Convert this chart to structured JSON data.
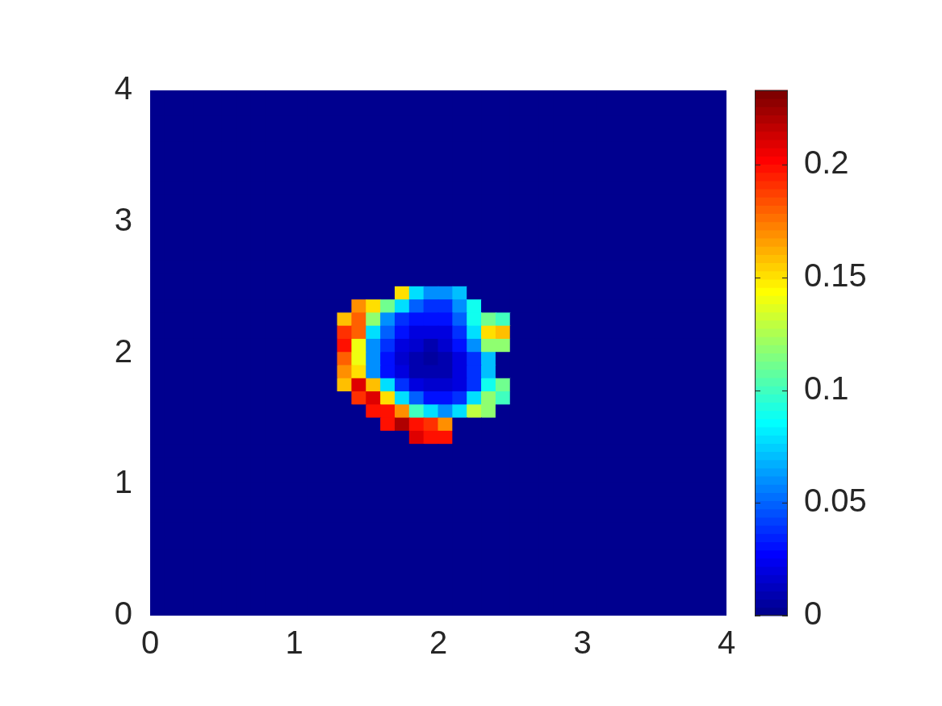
{
  "chart_data": {
    "type": "heatmap",
    "cells": [
      [
        0,
        0,
        0,
        0,
        0,
        0,
        0,
        0,
        0,
        0,
        0,
        0,
        0,
        0,
        0,
        0,
        0,
        0,
        0,
        0,
        0,
        0,
        0,
        0,
        0,
        0,
        0,
        0,
        0,
        0,
        0,
        0,
        0,
        0,
        0,
        0,
        0,
        0,
        0,
        0
      ],
      [
        0,
        0,
        0,
        0,
        0,
        0,
        0,
        0,
        0,
        0,
        0,
        0,
        0,
        0,
        0,
        0,
        0,
        0,
        0,
        0,
        0,
        0,
        0,
        0,
        0,
        0,
        0,
        0,
        0,
        0,
        0,
        0,
        0,
        0,
        0,
        0,
        0,
        0,
        0,
        0
      ],
      [
        0,
        0,
        0,
        0,
        0,
        0,
        0,
        0,
        0,
        0,
        0,
        0,
        0,
        0,
        0,
        0,
        0,
        0,
        0,
        0,
        0,
        0,
        0,
        0,
        0,
        0,
        0,
        0,
        0,
        0,
        0,
        0,
        0,
        0,
        0,
        0,
        0,
        0,
        0,
        0
      ],
      [
        0,
        0,
        0,
        0,
        0,
        0,
        0,
        0,
        0,
        0,
        0,
        0,
        0,
        0,
        0,
        0,
        0,
        0,
        0,
        0,
        0,
        0,
        0,
        0,
        0,
        0,
        0,
        0,
        0,
        0,
        0,
        0,
        0,
        0,
        0,
        0,
        0,
        0,
        0,
        0
      ],
      [
        0,
        0,
        0,
        0,
        0,
        0,
        0,
        0,
        0,
        0,
        0,
        0,
        0,
        0,
        0,
        0,
        0,
        0,
        0,
        0,
        0,
        0,
        0,
        0,
        0,
        0,
        0,
        0,
        0,
        0,
        0,
        0,
        0,
        0,
        0,
        0,
        0,
        0,
        0,
        0
      ],
      [
        0,
        0,
        0,
        0,
        0,
        0,
        0,
        0,
        0,
        0,
        0,
        0,
        0,
        0,
        0,
        0,
        0,
        0,
        0,
        0,
        0,
        0,
        0,
        0,
        0,
        0,
        0,
        0,
        0,
        0,
        0,
        0,
        0,
        0,
        0,
        0,
        0,
        0,
        0,
        0
      ],
      [
        0,
        0,
        0,
        0,
        0,
        0,
        0,
        0,
        0,
        0,
        0,
        0,
        0,
        0,
        0,
        0,
        0,
        0,
        0,
        0,
        0,
        0,
        0,
        0,
        0,
        0,
        0,
        0,
        0,
        0,
        0,
        0,
        0,
        0,
        0,
        0,
        0,
        0,
        0,
        0
      ],
      [
        0,
        0,
        0,
        0,
        0,
        0,
        0,
        0,
        0,
        0,
        0,
        0,
        0,
        0,
        0,
        0,
        0,
        0,
        0,
        0,
        0,
        0,
        0,
        0,
        0,
        0,
        0,
        0,
        0,
        0,
        0,
        0,
        0,
        0,
        0,
        0,
        0,
        0,
        0,
        0
      ],
      [
        0,
        0,
        0,
        0,
        0,
        0,
        0,
        0,
        0,
        0,
        0,
        0,
        0,
        0,
        0,
        0,
        0,
        0,
        0,
        0,
        0,
        0,
        0,
        0,
        0,
        0,
        0,
        0,
        0,
        0,
        0,
        0,
        0,
        0,
        0,
        0,
        0,
        0,
        0,
        0
      ],
      [
        0,
        0,
        0,
        0,
        0,
        0,
        0,
        0,
        0,
        0,
        0,
        0,
        0,
        0,
        0,
        0,
        0,
        0,
        0,
        0,
        0,
        0,
        0,
        0,
        0,
        0,
        0,
        0,
        0,
        0,
        0,
        0,
        0,
        0,
        0,
        0,
        0,
        0,
        0,
        0
      ],
      [
        0,
        0,
        0,
        0,
        0,
        0,
        0,
        0,
        0,
        0,
        0,
        0,
        0,
        0,
        0,
        0,
        0,
        0,
        0,
        0,
        0,
        0,
        0,
        0,
        0,
        0,
        0,
        0,
        0,
        0,
        0,
        0,
        0,
        0,
        0,
        0,
        0,
        0,
        0,
        0
      ],
      [
        0,
        0,
        0,
        0,
        0,
        0,
        0,
        0,
        0,
        0,
        0,
        0,
        0,
        0,
        0,
        0,
        0,
        0,
        0,
        0,
        0,
        0,
        0,
        0,
        0,
        0,
        0,
        0,
        0,
        0,
        0,
        0,
        0,
        0,
        0,
        0,
        0,
        0,
        0,
        0
      ],
      [
        0,
        0,
        0,
        0,
        0,
        0,
        0,
        0,
        0,
        0,
        0,
        0,
        0,
        0,
        0,
        0,
        0,
        0,
        0,
        0,
        0,
        0,
        0,
        0,
        0,
        0,
        0,
        0,
        0,
        0,
        0,
        0,
        0,
        0,
        0,
        0,
        0,
        0,
        0,
        0
      ],
      [
        0,
        0,
        0,
        0,
        0,
        0,
        0,
        0,
        0,
        0,
        0,
        0,
        0,
        0,
        0,
        0,
        0,
        0,
        0,
        0,
        0,
        0,
        0,
        0,
        0,
        0,
        0,
        0,
        0,
        0,
        0,
        0,
        0,
        0,
        0,
        0,
        0,
        0,
        0,
        0
      ],
      [
        0,
        0,
        0,
        0,
        0,
        0,
        0,
        0,
        0,
        0,
        0,
        0,
        0,
        0,
        0,
        0,
        0,
        0,
        0,
        0,
        0,
        0,
        0,
        0,
        0,
        0,
        0,
        0,
        0,
        0,
        0,
        0,
        0,
        0,
        0,
        0,
        0,
        0,
        0,
        0
      ],
      [
        0,
        0,
        0,
        0,
        0,
        0,
        0,
        0,
        0,
        0,
        0,
        0,
        0,
        0,
        0,
        0,
        0,
        0.15,
        0.08,
        0.06,
        0.06,
        0.07,
        0,
        0,
        0,
        0,
        0,
        0,
        0,
        0,
        0,
        0,
        0,
        0,
        0,
        0,
        0,
        0,
        0,
        0
      ],
      [
        0,
        0,
        0,
        0,
        0,
        0,
        0,
        0,
        0,
        0,
        0,
        0,
        0,
        0,
        0.17,
        0.15,
        0.11,
        0.08,
        0.05,
        0.04,
        0.04,
        0.06,
        0.09,
        0,
        0,
        0,
        0,
        0,
        0,
        0,
        0,
        0,
        0,
        0,
        0,
        0,
        0,
        0,
        0,
        0
      ],
      [
        0,
        0,
        0,
        0,
        0,
        0,
        0,
        0,
        0,
        0,
        0,
        0,
        0,
        0.16,
        0.18,
        0.12,
        0.06,
        0.04,
        0.03,
        0.03,
        0.03,
        0.05,
        0.09,
        0.11,
        0.1,
        0,
        0,
        0,
        0,
        0,
        0,
        0,
        0,
        0,
        0,
        0,
        0,
        0,
        0,
        0
      ],
      [
        0,
        0,
        0,
        0,
        0,
        0,
        0,
        0,
        0,
        0,
        0,
        0,
        0,
        0.19,
        0.18,
        0.08,
        0.05,
        0.03,
        0.02,
        0.02,
        0.02,
        0.04,
        0.08,
        0.15,
        0.16,
        0,
        0,
        0,
        0,
        0,
        0,
        0,
        0,
        0,
        0,
        0,
        0,
        0,
        0,
        0
      ],
      [
        0,
        0,
        0,
        0,
        0,
        0,
        0,
        0,
        0,
        0,
        0,
        0,
        0,
        0.2,
        0.14,
        0.06,
        0.04,
        0.02,
        0.015,
        0.01,
        0.015,
        0.03,
        0.06,
        0.12,
        0.12,
        0,
        0,
        0,
        0,
        0,
        0,
        0,
        0,
        0,
        0,
        0,
        0,
        0,
        0,
        0
      ],
      [
        0,
        0,
        0,
        0,
        0,
        0,
        0,
        0,
        0,
        0,
        0,
        0,
        0,
        0.18,
        0.14,
        0.06,
        0.03,
        0.015,
        0.01,
        0.005,
        0.01,
        0.02,
        0.04,
        0.07,
        0,
        0,
        0,
        0,
        0,
        0,
        0,
        0,
        0,
        0,
        0,
        0,
        0,
        0,
        0,
        0
      ],
      [
        0,
        0,
        0,
        0,
        0,
        0,
        0,
        0,
        0,
        0,
        0,
        0,
        0,
        0.17,
        0.15,
        0.06,
        0.03,
        0.02,
        0.01,
        0.01,
        0.01,
        0.02,
        0.04,
        0.07,
        0,
        0,
        0,
        0,
        0,
        0,
        0,
        0,
        0,
        0,
        0,
        0,
        0,
        0,
        0,
        0
      ],
      [
        0,
        0,
        0,
        0,
        0,
        0,
        0,
        0,
        0,
        0,
        0,
        0,
        0,
        0.16,
        0.21,
        0.16,
        0.08,
        0.04,
        0.02,
        0.015,
        0.015,
        0.02,
        0.04,
        0.09,
        0.11,
        0,
        0,
        0,
        0,
        0,
        0,
        0,
        0,
        0,
        0,
        0,
        0,
        0,
        0,
        0
      ],
      [
        0,
        0,
        0,
        0,
        0,
        0,
        0,
        0,
        0,
        0,
        0,
        0,
        0,
        0,
        0.19,
        0.21,
        0.15,
        0.08,
        0.05,
        0.03,
        0.03,
        0.04,
        0.08,
        0.12,
        0.1,
        0,
        0,
        0,
        0,
        0,
        0,
        0,
        0,
        0,
        0,
        0,
        0,
        0,
        0,
        0
      ],
      [
        0,
        0,
        0,
        0,
        0,
        0,
        0,
        0,
        0,
        0,
        0,
        0,
        0,
        0,
        0,
        0.2,
        0.2,
        0.17,
        0.1,
        0.08,
        0.06,
        0.08,
        0.13,
        0.12,
        0,
        0,
        0,
        0,
        0,
        0,
        0,
        0,
        0,
        0,
        0,
        0,
        0,
        0,
        0,
        0
      ],
      [
        0,
        0,
        0,
        0,
        0,
        0,
        0,
        0,
        0,
        0,
        0,
        0,
        0,
        0,
        0,
        0,
        0.2,
        0.22,
        0.2,
        0.19,
        0.17,
        0,
        0,
        0,
        0,
        0,
        0,
        0,
        0,
        0,
        0,
        0,
        0,
        0,
        0,
        0,
        0,
        0,
        0,
        0
      ],
      [
        0,
        0,
        0,
        0,
        0,
        0,
        0,
        0,
        0,
        0,
        0,
        0,
        0,
        0,
        0,
        0,
        0,
        0,
        0.21,
        0.2,
        0.2,
        0,
        0,
        0,
        0,
        0,
        0,
        0,
        0,
        0,
        0,
        0,
        0,
        0,
        0,
        0,
        0,
        0,
        0,
        0
      ],
      [
        0,
        0,
        0,
        0,
        0,
        0,
        0,
        0,
        0,
        0,
        0,
        0,
        0,
        0,
        0,
        0,
        0,
        0,
        0,
        0,
        0,
        0,
        0,
        0,
        0,
        0,
        0,
        0,
        0,
        0,
        0,
        0,
        0,
        0,
        0,
        0,
        0,
        0,
        0,
        0
      ],
      [
        0,
        0,
        0,
        0,
        0,
        0,
        0,
        0,
        0,
        0,
        0,
        0,
        0,
        0,
        0,
        0,
        0,
        0,
        0,
        0,
        0,
        0,
        0,
        0,
        0,
        0,
        0,
        0,
        0,
        0,
        0,
        0,
        0,
        0,
        0,
        0,
        0,
        0,
        0,
        0
      ],
      [
        0,
        0,
        0,
        0,
        0,
        0,
        0,
        0,
        0,
        0,
        0,
        0,
        0,
        0,
        0,
        0,
        0,
        0,
        0,
        0,
        0,
        0,
        0,
        0,
        0,
        0,
        0,
        0,
        0,
        0,
        0,
        0,
        0,
        0,
        0,
        0,
        0,
        0,
        0,
        0
      ],
      [
        0,
        0,
        0,
        0,
        0,
        0,
        0,
        0,
        0,
        0,
        0,
        0,
        0,
        0,
        0,
        0,
        0,
        0,
        0,
        0,
        0,
        0,
        0,
        0,
        0,
        0,
        0,
        0,
        0,
        0,
        0,
        0,
        0,
        0,
        0,
        0,
        0,
        0,
        0,
        0
      ],
      [
        0,
        0,
        0,
        0,
        0,
        0,
        0,
        0,
        0,
        0,
        0,
        0,
        0,
        0,
        0,
        0,
        0,
        0,
        0,
        0,
        0,
        0,
        0,
        0,
        0,
        0,
        0,
        0,
        0,
        0,
        0,
        0,
        0,
        0,
        0,
        0,
        0,
        0,
        0,
        0
      ],
      [
        0,
        0,
        0,
        0,
        0,
        0,
        0,
        0,
        0,
        0,
        0,
        0,
        0,
        0,
        0,
        0,
        0,
        0,
        0,
        0,
        0,
        0,
        0,
        0,
        0,
        0,
        0,
        0,
        0,
        0,
        0,
        0,
        0,
        0,
        0,
        0,
        0,
        0,
        0,
        0
      ],
      [
        0,
        0,
        0,
        0,
        0,
        0,
        0,
        0,
        0,
        0,
        0,
        0,
        0,
        0,
        0,
        0,
        0,
        0,
        0,
        0,
        0,
        0,
        0,
        0,
        0,
        0,
        0,
        0,
        0,
        0,
        0,
        0,
        0,
        0,
        0,
        0,
        0,
        0,
        0,
        0
      ],
      [
        0,
        0,
        0,
        0,
        0,
        0,
        0,
        0,
        0,
        0,
        0,
        0,
        0,
        0,
        0,
        0,
        0,
        0,
        0,
        0,
        0,
        0,
        0,
        0,
        0,
        0,
        0,
        0,
        0,
        0,
        0,
        0,
        0,
        0,
        0,
        0,
        0,
        0,
        0,
        0
      ],
      [
        0,
        0,
        0,
        0,
        0,
        0,
        0,
        0,
        0,
        0,
        0,
        0,
        0,
        0,
        0,
        0,
        0,
        0,
        0,
        0,
        0,
        0,
        0,
        0,
        0,
        0,
        0,
        0,
        0,
        0,
        0,
        0,
        0,
        0,
        0,
        0,
        0,
        0,
        0,
        0
      ],
      [
        0,
        0,
        0,
        0,
        0,
        0,
        0,
        0,
        0,
        0,
        0,
        0,
        0,
        0,
        0,
        0,
        0,
        0,
        0,
        0,
        0,
        0,
        0,
        0,
        0,
        0,
        0,
        0,
        0,
        0,
        0,
        0,
        0,
        0,
        0,
        0,
        0,
        0,
        0,
        0
      ],
      [
        0,
        0,
        0,
        0,
        0,
        0,
        0,
        0,
        0,
        0,
        0,
        0,
        0,
        0,
        0,
        0,
        0,
        0,
        0,
        0,
        0,
        0,
        0,
        0,
        0,
        0,
        0,
        0,
        0,
        0,
        0,
        0,
        0,
        0,
        0,
        0,
        0,
        0,
        0,
        0
      ],
      [
        0,
        0,
        0,
        0,
        0,
        0,
        0,
        0,
        0,
        0,
        0,
        0,
        0,
        0,
        0,
        0,
        0,
        0,
        0,
        0,
        0,
        0,
        0,
        0,
        0,
        0,
        0,
        0,
        0,
        0,
        0,
        0,
        0,
        0,
        0,
        0,
        0,
        0,
        0,
        0
      ],
      [
        0,
        0,
        0,
        0,
        0,
        0,
        0,
        0,
        0,
        0,
        0,
        0,
        0,
        0,
        0,
        0,
        0,
        0,
        0,
        0,
        0,
        0,
        0,
        0,
        0,
        0,
        0,
        0,
        0,
        0,
        0,
        0,
        0,
        0,
        0,
        0,
        0,
        0,
        0,
        0
      ]
    ],
    "xlim": [
      0,
      4
    ],
    "xticks": [
      0,
      1,
      2,
      3,
      4
    ],
    "ylim": [
      0,
      4
    ],
    "yticks": [
      0,
      1,
      2,
      3,
      4
    ],
    "clim": [
      0,
      0.233
    ],
    "cticks": [
      0,
      0.05,
      0.1,
      0.15,
      0.2
    ]
  }
}
